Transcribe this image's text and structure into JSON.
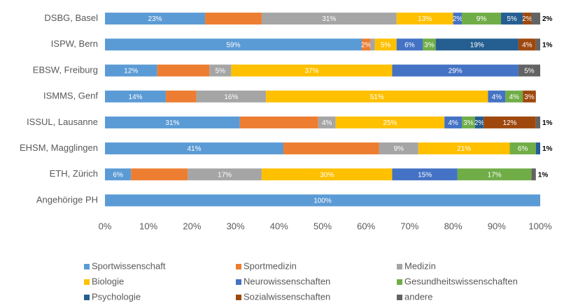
{
  "chart_data": {
    "type": "stacked-barh",
    "categories": [
      "DSBG, Basel",
      "ISPW, Bern",
      "EBSW, Freiburg",
      "ISMMS, Genf",
      "ISSUL, Lausanne",
      "EHSM, Magglingen",
      "ETH, Zürich",
      "Angehörige PH"
    ],
    "xlim": [
      0,
      100
    ],
    "xticks": [
      {
        "value": 0,
        "label": "0%"
      },
      {
        "value": 10,
        "label": "10%"
      },
      {
        "value": 20,
        "label": "20%"
      },
      {
        "value": 30,
        "label": "30%"
      },
      {
        "value": 40,
        "label": "40%"
      },
      {
        "value": 50,
        "label": "50%"
      },
      {
        "value": 60,
        "label": "60%"
      },
      {
        "value": 70,
        "label": "70%"
      },
      {
        "value": 80,
        "label": "80%"
      },
      {
        "value": 90,
        "label": "90%"
      },
      {
        "value": 100,
        "label": "100%"
      }
    ],
    "grid": false,
    "legend": "bottom",
    "series": [
      {
        "name": "Sportwissenschaft",
        "color": "#5b9bd5",
        "values": [
          23,
          59,
          12,
          14,
          31,
          41,
          6,
          100
        ],
        "value_labels": [
          "23%",
          "59%",
          "12%",
          "14%",
          "31%",
          "41%",
          "6%",
          "100%"
        ]
      },
      {
        "name": "Sportmedizin",
        "color": "#ed7d31",
        "values": [
          13,
          2,
          12,
          7,
          18,
          22,
          13,
          0
        ],
        "value_labels": [
          null,
          "2%",
          null,
          null,
          null,
          null,
          null,
          null
        ]
      },
      {
        "name": "Medizin",
        "color": "#a5a5a5",
        "values": [
          31,
          1,
          5,
          16,
          4,
          9,
          17,
          0
        ],
        "value_labels": [
          "31%",
          null,
          "5%",
          "16%",
          "4%",
          "9%",
          "17%",
          null
        ]
      },
      {
        "name": "Biologie",
        "color": "#ffc000",
        "values": [
          13,
          5,
          37,
          51,
          25,
          21,
          30,
          0
        ],
        "value_labels": [
          "13%",
          "5%",
          "37%",
          "51%",
          "25%",
          "21%",
          "30%",
          null
        ]
      },
      {
        "name": "Neurowissenschaften",
        "color": "#4472c4",
        "values": [
          2,
          6,
          29,
          4,
          4,
          0,
          15,
          0
        ],
        "value_labels": [
          "2%",
          "6%",
          "29%",
          "4%",
          "4%",
          null,
          "15%",
          null
        ]
      },
      {
        "name": "Gesundheitswissenschaften",
        "color": "#70ad47",
        "values": [
          9,
          3,
          0,
          4,
          3,
          6,
          17,
          0
        ],
        "value_labels": [
          "9%",
          "3%",
          null,
          "4%",
          "3%",
          "6%",
          "17%",
          null
        ]
      },
      {
        "name": "Psychologie",
        "color": "#255e91",
        "values": [
          5,
          19,
          0,
          0,
          2,
          1,
          0,
          0
        ],
        "value_labels": [
          "5%",
          "19%",
          null,
          null,
          "2%",
          "1%",
          null,
          null
        ]
      },
      {
        "name": "Sozialwissenschaften",
        "color": "#9e480e",
        "values": [
          2,
          4,
          0,
          3,
          12,
          0,
          0,
          0
        ],
        "value_labels": [
          "2%",
          "4%",
          null,
          "3%",
          "12%",
          null,
          null,
          null
        ]
      },
      {
        "name": "andere",
        "color": "#636363",
        "values": [
          2,
          1,
          5,
          0,
          1,
          0,
          1,
          0
        ],
        "value_labels": [
          "2%",
          "1%",
          "5%",
          null,
          "1%",
          null,
          "1%",
          null
        ]
      }
    ]
  }
}
